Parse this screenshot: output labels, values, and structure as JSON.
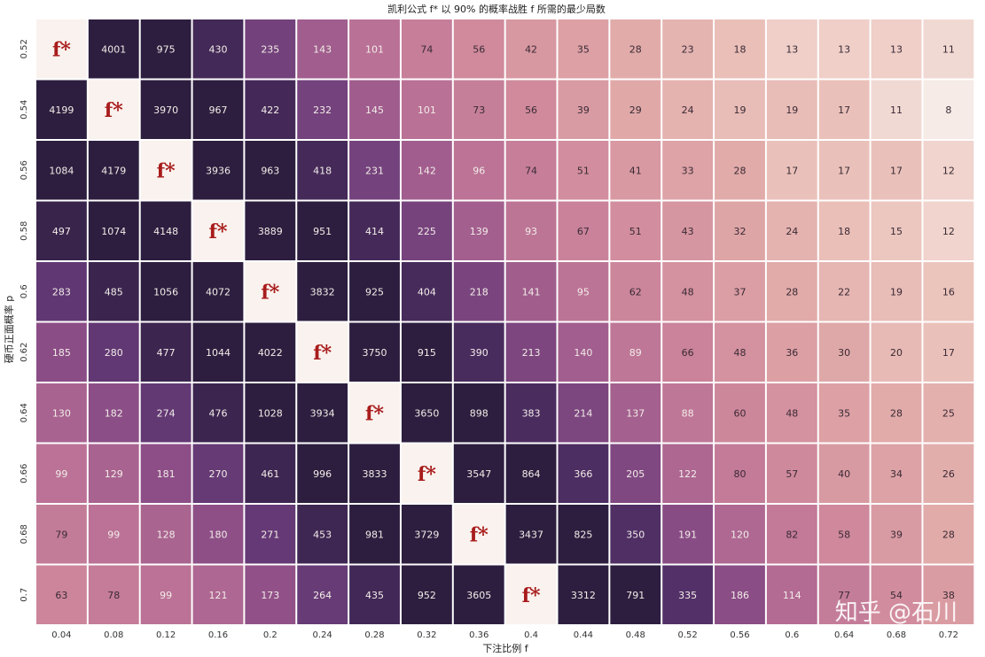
{
  "chart_data": {
    "type": "heatmap",
    "title": "凯利公式 f* 以 90% 的概率战胜 f 所需的最少局数",
    "xlabel": "下注比例 f",
    "ylabel": "硬币正面概率 p",
    "x_categories": [
      "0.04",
      "0.08",
      "0.12",
      "0.16",
      "0.2",
      "0.24",
      "0.28",
      "0.32",
      "0.36",
      "0.4",
      "0.44",
      "0.48",
      "0.52",
      "0.56",
      "0.6",
      "0.64",
      "0.68",
      "0.72"
    ],
    "y_categories": [
      "0.52",
      "0.54",
      "0.56",
      "0.58",
      "0.6",
      "0.62",
      "0.64",
      "0.66",
      "0.68",
      "0.7"
    ],
    "values": [
      [
        "f*",
        "4001",
        "975",
        "430",
        "235",
        "143",
        "101",
        "74",
        "56",
        "42",
        "35",
        "28",
        "23",
        "18",
        "13",
        "13",
        "13",
        "11"
      ],
      [
        "4199",
        "f*",
        "3970",
        "967",
        "422",
        "232",
        "145",
        "101",
        "73",
        "56",
        "39",
        "29",
        "24",
        "19",
        "19",
        "17",
        "11",
        "8"
      ],
      [
        "1084",
        "4179",
        "f*",
        "3936",
        "963",
        "418",
        "231",
        "142",
        "96",
        "74",
        "51",
        "41",
        "33",
        "28",
        "17",
        "17",
        "17",
        "12"
      ],
      [
        "497",
        "1074",
        "4148",
        "f*",
        "3889",
        "951",
        "414",
        "225",
        "139",
        "93",
        "67",
        "51",
        "43",
        "32",
        "24",
        "18",
        "15",
        "12"
      ],
      [
        "283",
        "485",
        "1056",
        "4072",
        "f*",
        "3832",
        "925",
        "404",
        "218",
        "141",
        "95",
        "62",
        "48",
        "37",
        "28",
        "22",
        "19",
        "16"
      ],
      [
        "185",
        "280",
        "477",
        "1044",
        "4022",
        "f*",
        "3750",
        "915",
        "390",
        "213",
        "140",
        "89",
        "66",
        "48",
        "36",
        "30",
        "20",
        "17"
      ],
      [
        "130",
        "182",
        "274",
        "476",
        "1028",
        "3934",
        "f*",
        "3650",
        "898",
        "383",
        "214",
        "137",
        "88",
        "60",
        "48",
        "35",
        "28",
        "25"
      ],
      [
        "99",
        "129",
        "181",
        "270",
        "461",
        "996",
        "3833",
        "f*",
        "3547",
        "864",
        "366",
        "205",
        "122",
        "80",
        "57",
        "40",
        "34",
        "26"
      ],
      [
        "79",
        "99",
        "128",
        "180",
        "271",
        "453",
        "981",
        "3729",
        "f*",
        "3437",
        "825",
        "350",
        "191",
        "120",
        "82",
        "58",
        "39",
        "28"
      ],
      [
        "63",
        "78",
        "99",
        "121",
        "173",
        "264",
        "435",
        "952",
        "3605",
        "f*",
        "3312",
        "791",
        "335",
        "186",
        "114",
        "77",
        "54",
        "38"
      ]
    ],
    "optimal_marker": "f*",
    "color_scale": {
      "low": "#f5e8e4",
      "high": "#2d1e3f",
      "marker_cell": "#faf2ee",
      "marker_text": "#a81c1c"
    }
  },
  "watermark": "知乎 @石川"
}
